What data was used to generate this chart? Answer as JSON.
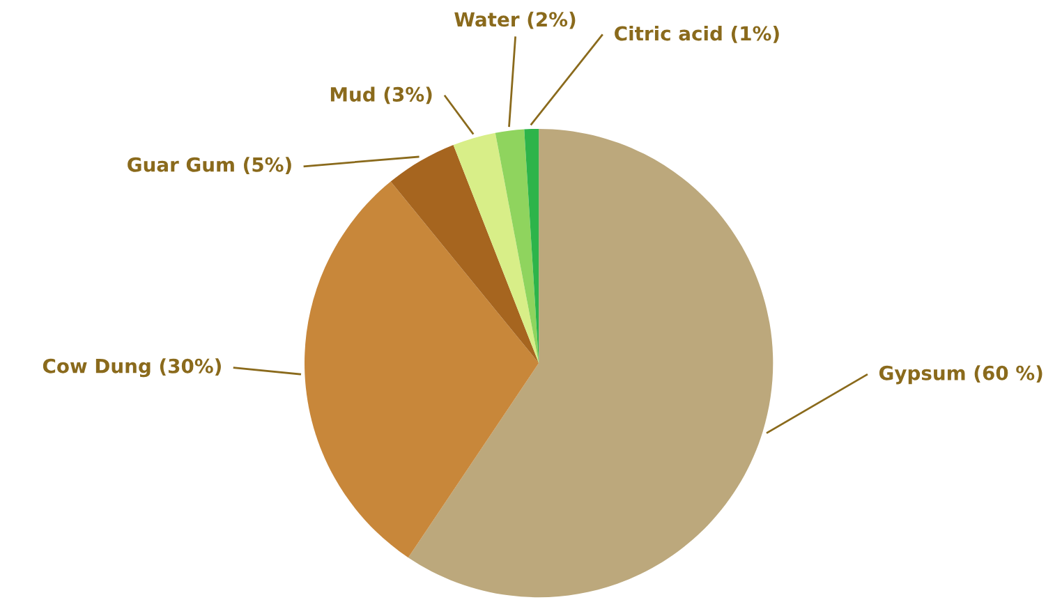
{
  "chart_data": {
    "type": "pie",
    "categories": [
      "Gypsum",
      "Cow Dung",
      "Guar Gum",
      "Mud",
      "Water",
      "Citric acid"
    ],
    "values": [
      60,
      30,
      5,
      3,
      2,
      1
    ],
    "value_labels": [
      "(60 %)",
      "(30%)",
      "(5%)",
      "(3%)",
      "(2%)",
      "(1%)"
    ],
    "colors": [
      "#bca87c",
      "#c8873a",
      "#a6651f",
      "#d8ee88",
      "#8fd45e",
      "#2db44a"
    ],
    "legend": false
  }
}
